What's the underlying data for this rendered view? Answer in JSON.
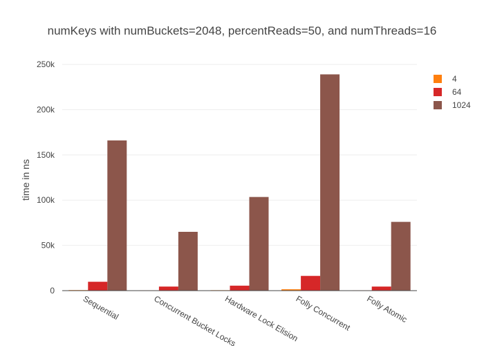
{
  "chart_data": {
    "type": "bar",
    "title": "numKeys with numBuckets=2048, percentReads=50, and numThreads=16",
    "xlabel": "",
    "ylabel": "time in ns",
    "categories": [
      "Sequential",
      "Concurrent Bucket Locks",
      "Hardware Lock Elision",
      "Folly Concurrent",
      "Folly Atomic"
    ],
    "series": [
      {
        "name": "4",
        "color": "#ff7f0e",
        "values": [
          600,
          400,
          500,
          1500,
          400
        ]
      },
      {
        "name": "64",
        "color": "#d62728",
        "values": [
          9800,
          4500,
          5500,
          16300,
          4500
        ]
      },
      {
        "name": "1024",
        "color": "#8c564b",
        "values": [
          166000,
          65000,
          103500,
          239000,
          76000
        ]
      }
    ],
    "ylim": [
      0,
      260000
    ],
    "yticks": [
      0,
      50000,
      100000,
      150000,
      200000,
      250000
    ],
    "ytick_labels": [
      "0",
      "50k",
      "100k",
      "150k",
      "200k",
      "250k"
    ],
    "grid": true,
    "legend_position": "top-right"
  }
}
